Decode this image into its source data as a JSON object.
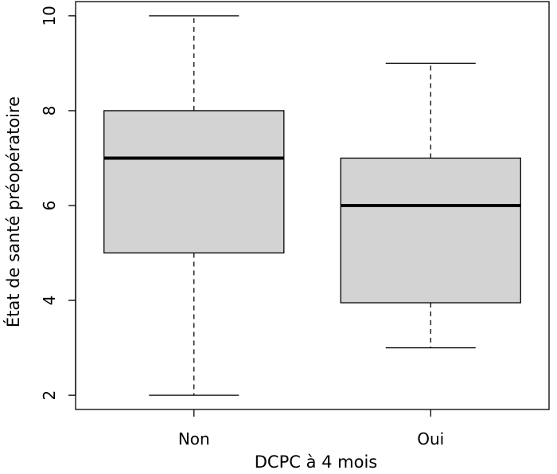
{
  "chart_data": {
    "type": "boxplot",
    "xlabel": "DCPC à 4 mois",
    "ylabel": "État de santé préopératoire",
    "categories": [
      "Non",
      "Oui"
    ],
    "ylim": [
      1.7,
      10.3
    ],
    "yticks": [
      2,
      4,
      6,
      8,
      10
    ],
    "ytick_labels": [
      "2",
      "4",
      "6",
      "8",
      "10"
    ],
    "boxes": [
      {
        "min": 2,
        "q1": 5,
        "median": 7,
        "q3": 8,
        "max": 10
      },
      {
        "min": 3,
        "q1": 3.95,
        "median": 6,
        "q3": 7,
        "max": 9
      }
    ],
    "box_fill": "#d3d3d3",
    "grid": false
  }
}
